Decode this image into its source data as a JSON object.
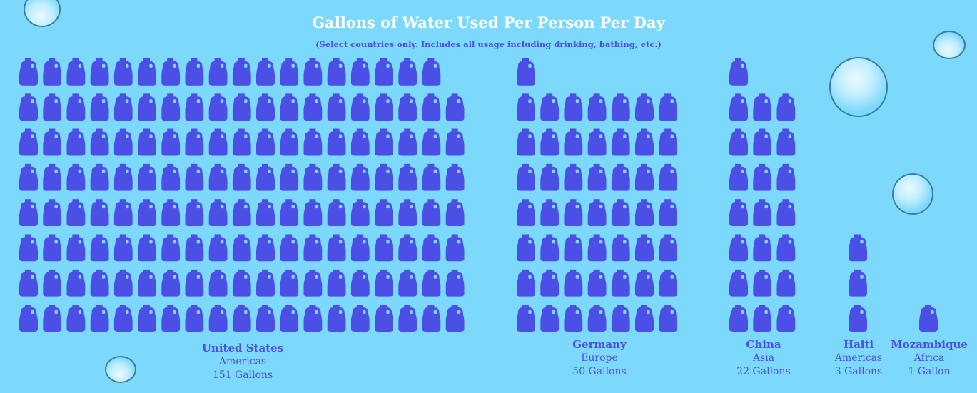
{
  "title": "Gallons of Water Used Per Person Per Day",
  "subtitle": "(Select countries only.  Includes all usage including drinking, bathing, etc.)",
  "chart_data": {
    "type": "pictograph",
    "unit_icon": "water-jug-icon",
    "unit_value": 1,
    "categories": [
      "United States",
      "Germany",
      "China",
      "Haiti",
      "Mozambique"
    ],
    "regions": [
      "Americas",
      "Europe",
      "Asia",
      "Americas",
      "Africa"
    ],
    "values": [
      151,
      50,
      22,
      3,
      1
    ],
    "value_labels": [
      "151 Gallons",
      "50 Gallons",
      "22 Gallons",
      "3 Gallons",
      "1 Gallon"
    ]
  },
  "colors": {
    "background": "#7dd9fb",
    "icon": "#4b4fe6",
    "title": "#ffffff",
    "text": "#4b4fe6"
  }
}
